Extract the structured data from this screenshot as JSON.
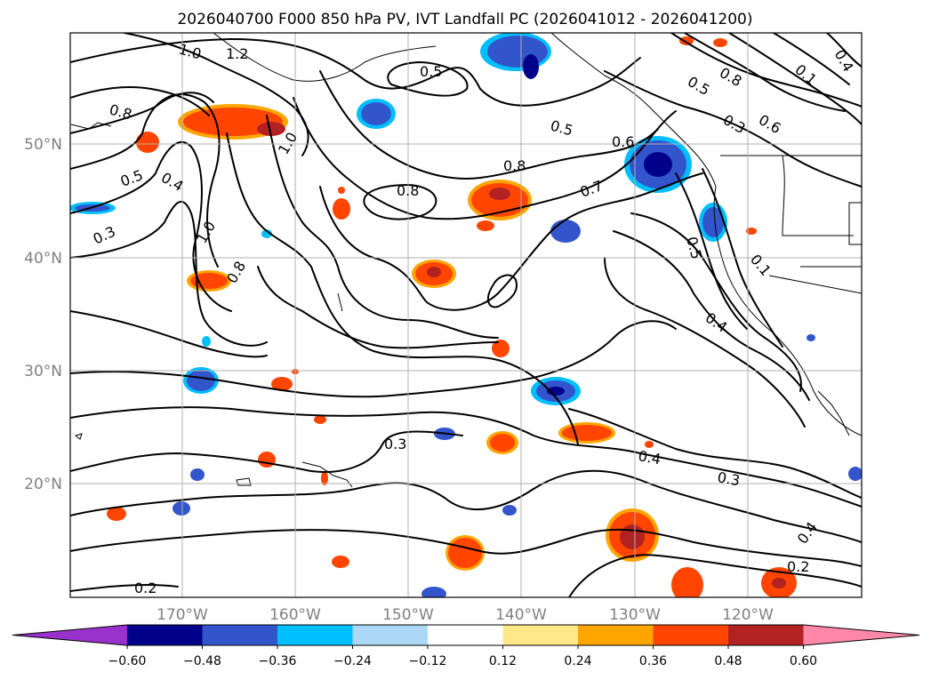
{
  "title": "2026040700 F000 850 hPa PV, IVT Landfall PC (2026041012 - 2026041200)",
  "lon_ticks": [
    "170°W",
    "160°W",
    "150°W",
    "140°W",
    "130°W",
    "120°W"
  ],
  "lat_ticks": [
    "50°N",
    "40°N",
    "30°N",
    "20°N"
  ],
  "colorbar": {
    "colors": [
      "#9932cc",
      "#00008b",
      "#3355cc",
      "#00bfff",
      "#add8f5",
      "#ffffff",
      "#ffe88a",
      "#ffa500",
      "#ff4500",
      "#b22222",
      "#ff88aa"
    ],
    "labels": [
      "−0.60",
      "−0.48",
      "−0.36",
      "−0.24",
      "−0.12",
      "0.12",
      "0.24",
      "0.36",
      "0.48",
      "0.60"
    ]
  },
  "contour_labels": [
    "1.0",
    "1.2",
    "0.8",
    "1.0",
    "0.5",
    "0.4",
    "0.3",
    "1.0",
    "0.8",
    "0.5",
    "0.8",
    "0.8",
    "0.5",
    "0.6",
    "0.7",
    "0.5",
    "0.8",
    "0.1",
    "0.4",
    "0.3",
    "0.6",
    "0.5",
    "0.1",
    "0.4",
    "0.3",
    "0.4",
    "0.3",
    "0.4",
    "0.2",
    "0.2"
  ]
}
